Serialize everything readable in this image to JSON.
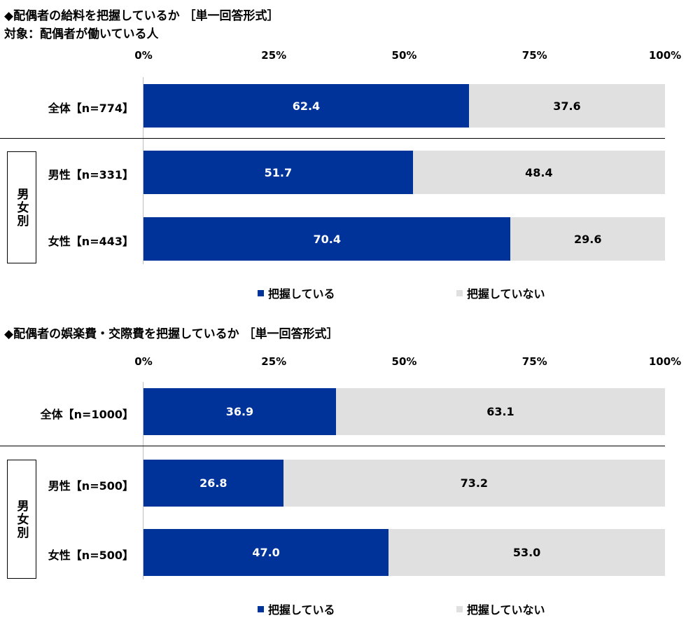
{
  "colors": {
    "series1": "#003399",
    "series2": "#e0e0e0"
  },
  "chart_data": [
    {
      "type": "bar",
      "orientation": "horizontal",
      "stacked": true,
      "title": "◆配偶者の給料を把握しているか ［単一回答形式］",
      "subtitle": "対象：配偶者が働いている人",
      "ticks": [
        "0%",
        "25%",
        "50%",
        "75%",
        "100%"
      ],
      "xlim": [
        0,
        100
      ],
      "categories": [
        "全体【n=774】",
        "男性【n=331】",
        "女性【n=443】"
      ],
      "group_label": "男女別",
      "series": [
        {
          "name": "把握している",
          "values": [
            62.4,
            51.7,
            70.4
          ]
        },
        {
          "name": "把握していない",
          "values": [
            37.6,
            48.4,
            29.6
          ]
        }
      ],
      "legend_position": "bottom"
    },
    {
      "type": "bar",
      "orientation": "horizontal",
      "stacked": true,
      "title": "◆配偶者の娯楽費・交際費を把握しているか ［単一回答形式］",
      "ticks": [
        "0%",
        "25%",
        "50%",
        "75%",
        "100%"
      ],
      "xlim": [
        0,
        100
      ],
      "categories": [
        "全体【n=1000】",
        "男性【n=500】",
        "女性【n=500】"
      ],
      "group_label": "男女別",
      "series": [
        {
          "name": "把握している",
          "values": [
            36.9,
            26.8,
            47.0
          ]
        },
        {
          "name": "把握していない",
          "values": [
            63.1,
            73.2,
            53.0
          ]
        }
      ],
      "legend_position": "bottom"
    }
  ]
}
